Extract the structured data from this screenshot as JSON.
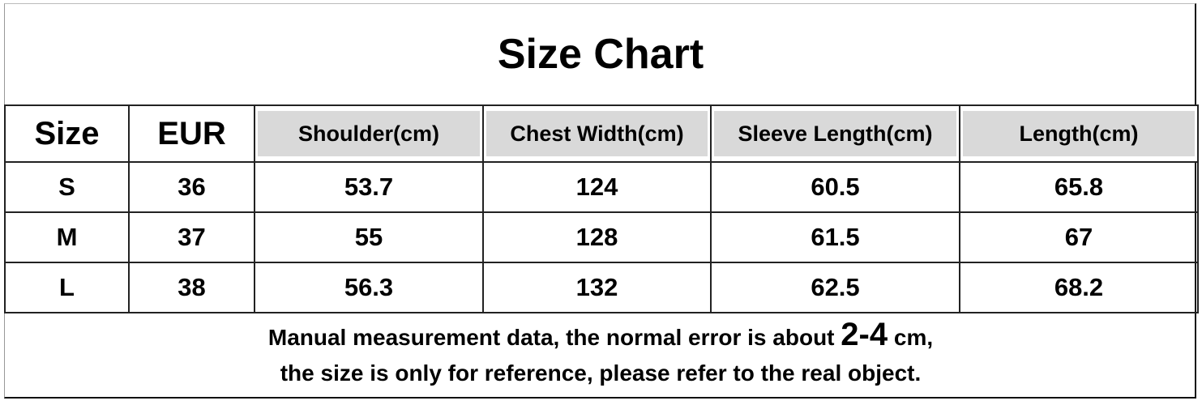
{
  "title": "Size Chart",
  "table": {
    "headers": [
      "Size",
      "EUR",
      "Shoulder(cm)",
      "Chest Width(cm)",
      "Sleeve Length(cm)",
      "Length(cm)"
    ],
    "rows": [
      [
        "S",
        "36",
        "53.7",
        "124",
        "60.5",
        "65.8"
      ],
      [
        "M",
        "37",
        "55",
        "128",
        "61.5",
        "67"
      ],
      [
        "L",
        "38",
        "56.3",
        "132",
        "62.5",
        "68.2"
      ]
    ],
    "header_highlight_color": "#d9d9d9"
  },
  "note": {
    "line1_prefix": "Manual measurement data, the normal error is about ",
    "line1_range": "2-4",
    "line1_suffix": " cm,",
    "line2": "the size is only for reference, please refer to the real object."
  }
}
